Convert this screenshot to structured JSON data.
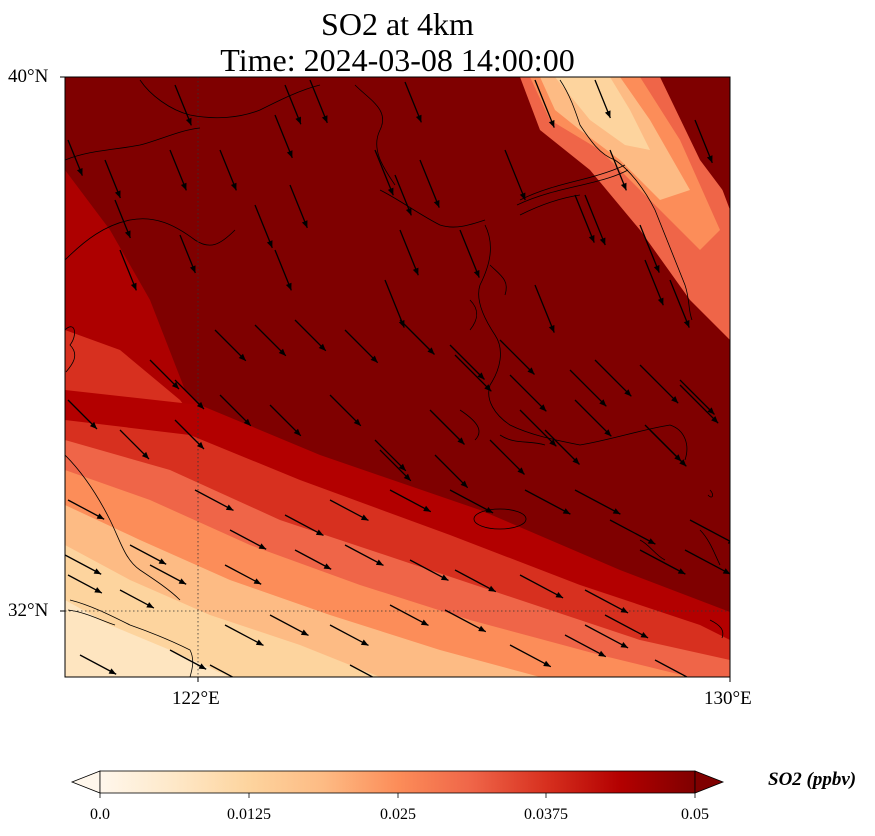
{
  "title": {
    "line1": "SO2 at 4km",
    "line2": "Time: 2024-03-08 14:00:00"
  },
  "axes": {
    "lat_ticks": [
      "40°N",
      "32°N"
    ],
    "lon_ticks": [
      "122°E",
      "130°E"
    ]
  },
  "colorbar": {
    "label": "SO2 (ppbv)",
    "ticks": [
      "0.0",
      "0.0125",
      "0.025",
      "0.0375",
      "0.05"
    ],
    "colormap": "OrRd",
    "min": 0.0,
    "max": 0.05,
    "extend": "both"
  },
  "map": {
    "lon_range": [
      120,
      130
    ],
    "lat_range": [
      31,
      40
    ],
    "gridlines": "dotted",
    "field_colors": {
      "high": "#7f0000",
      "mid": "#d7301f",
      "low": "#fdd49e"
    },
    "wind_direction": "north-westerly (arrows pointing to south-east)"
  }
}
